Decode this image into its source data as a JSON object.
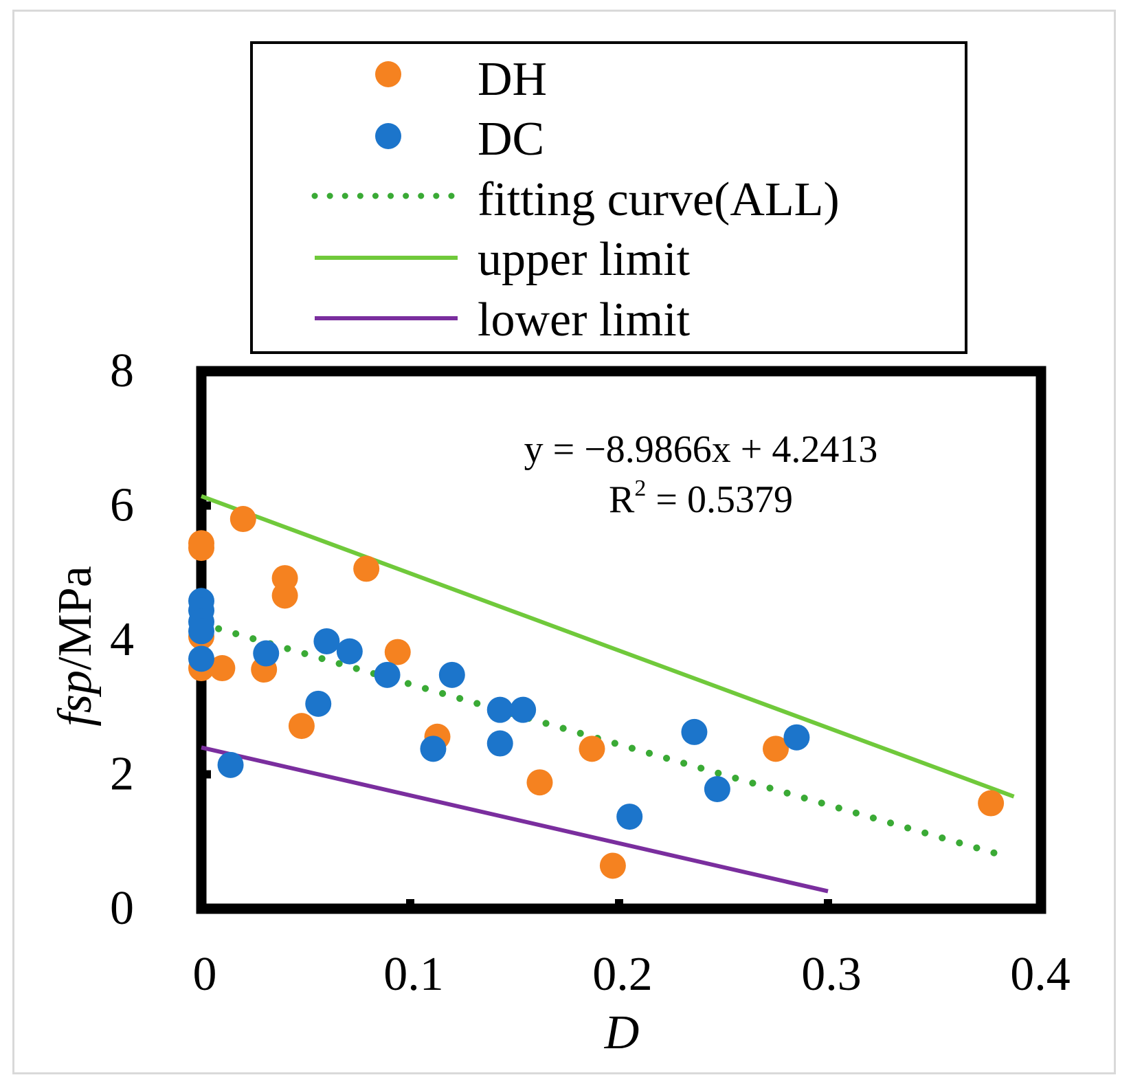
{
  "chart_data": {
    "type": "scatter",
    "xlabel": "D",
    "ylabel_italic": "fsp",
    "ylabel_rest": "/MPa",
    "xlim": [
      0,
      0.4
    ],
    "ylim": [
      0,
      8
    ],
    "x_ticks": [
      0,
      0.1,
      0.2,
      0.3,
      0.4
    ],
    "x_tick_labels": [
      "0",
      "0.1",
      "0.2",
      "0.3",
      "0.4"
    ],
    "y_ticks": [
      0,
      2,
      4,
      6,
      8
    ],
    "y_tick_labels": [
      "0",
      "2",
      "4",
      "6",
      "8"
    ],
    "grid": false,
    "legend_position": "top",
    "annotation": {
      "equation": "y = −8.9866x + 4.2413",
      "r2_label": "R",
      "r2_sup": "2",
      "r2_value": " = 0.5379"
    },
    "series": [
      {
        "name": "DH",
        "kind": "scatter",
        "color": "#F58220",
        "points": [
          [
            0,
            5.44
          ],
          [
            0,
            5.37
          ],
          [
            0,
            4.05
          ],
          [
            0,
            3.58
          ],
          [
            0.01,
            3.58
          ],
          [
            0.02,
            5.8
          ],
          [
            0.03,
            3.56
          ],
          [
            0.04,
            4.92
          ],
          [
            0.04,
            4.66
          ],
          [
            0.048,
            2.72
          ],
          [
            0.079,
            5.06
          ],
          [
            0.094,
            3.82
          ],
          [
            0.113,
            2.56
          ],
          [
            0.162,
            1.88
          ],
          [
            0.187,
            2.38
          ],
          [
            0.197,
            0.64
          ],
          [
            0.275,
            2.38
          ],
          [
            0.378,
            1.57
          ]
        ]
      },
      {
        "name": "DC",
        "kind": "scatter",
        "color": "#1C75CB",
        "points": [
          [
            0,
            4.58
          ],
          [
            0,
            4.44
          ],
          [
            0,
            4.27
          ],
          [
            0,
            4.13
          ],
          [
            0,
            3.72
          ],
          [
            0.014,
            2.14
          ],
          [
            0.031,
            3.8
          ],
          [
            0.056,
            3.05
          ],
          [
            0.06,
            3.98
          ],
          [
            0.071,
            3.83
          ],
          [
            0.089,
            3.48
          ],
          [
            0.111,
            2.38
          ],
          [
            0.12,
            3.48
          ],
          [
            0.143,
            2.96
          ],
          [
            0.143,
            2.46
          ],
          [
            0.154,
            2.96
          ],
          [
            0.205,
            1.37
          ],
          [
            0.236,
            2.63
          ],
          [
            0.247,
            1.78
          ],
          [
            0.285,
            2.55
          ]
        ]
      },
      {
        "name": "fitting curve(ALL)",
        "kind": "line",
        "style": "dotted",
        "color": "#3AAA35",
        "points": [
          [
            0,
            4.2413
          ],
          [
            0.38,
            0.8264
          ]
        ]
      },
      {
        "name": "upper limit",
        "kind": "line",
        "style": "solid",
        "color": "#70C93B",
        "points": [
          [
            0,
            6.14
          ],
          [
            0.389,
            1.67
          ]
        ]
      },
      {
        "name": "lower limit",
        "kind": "line",
        "style": "solid",
        "color": "#7A2E9E",
        "points": [
          [
            0,
            2.4
          ],
          [
            0.3,
            0.26
          ]
        ]
      }
    ]
  }
}
